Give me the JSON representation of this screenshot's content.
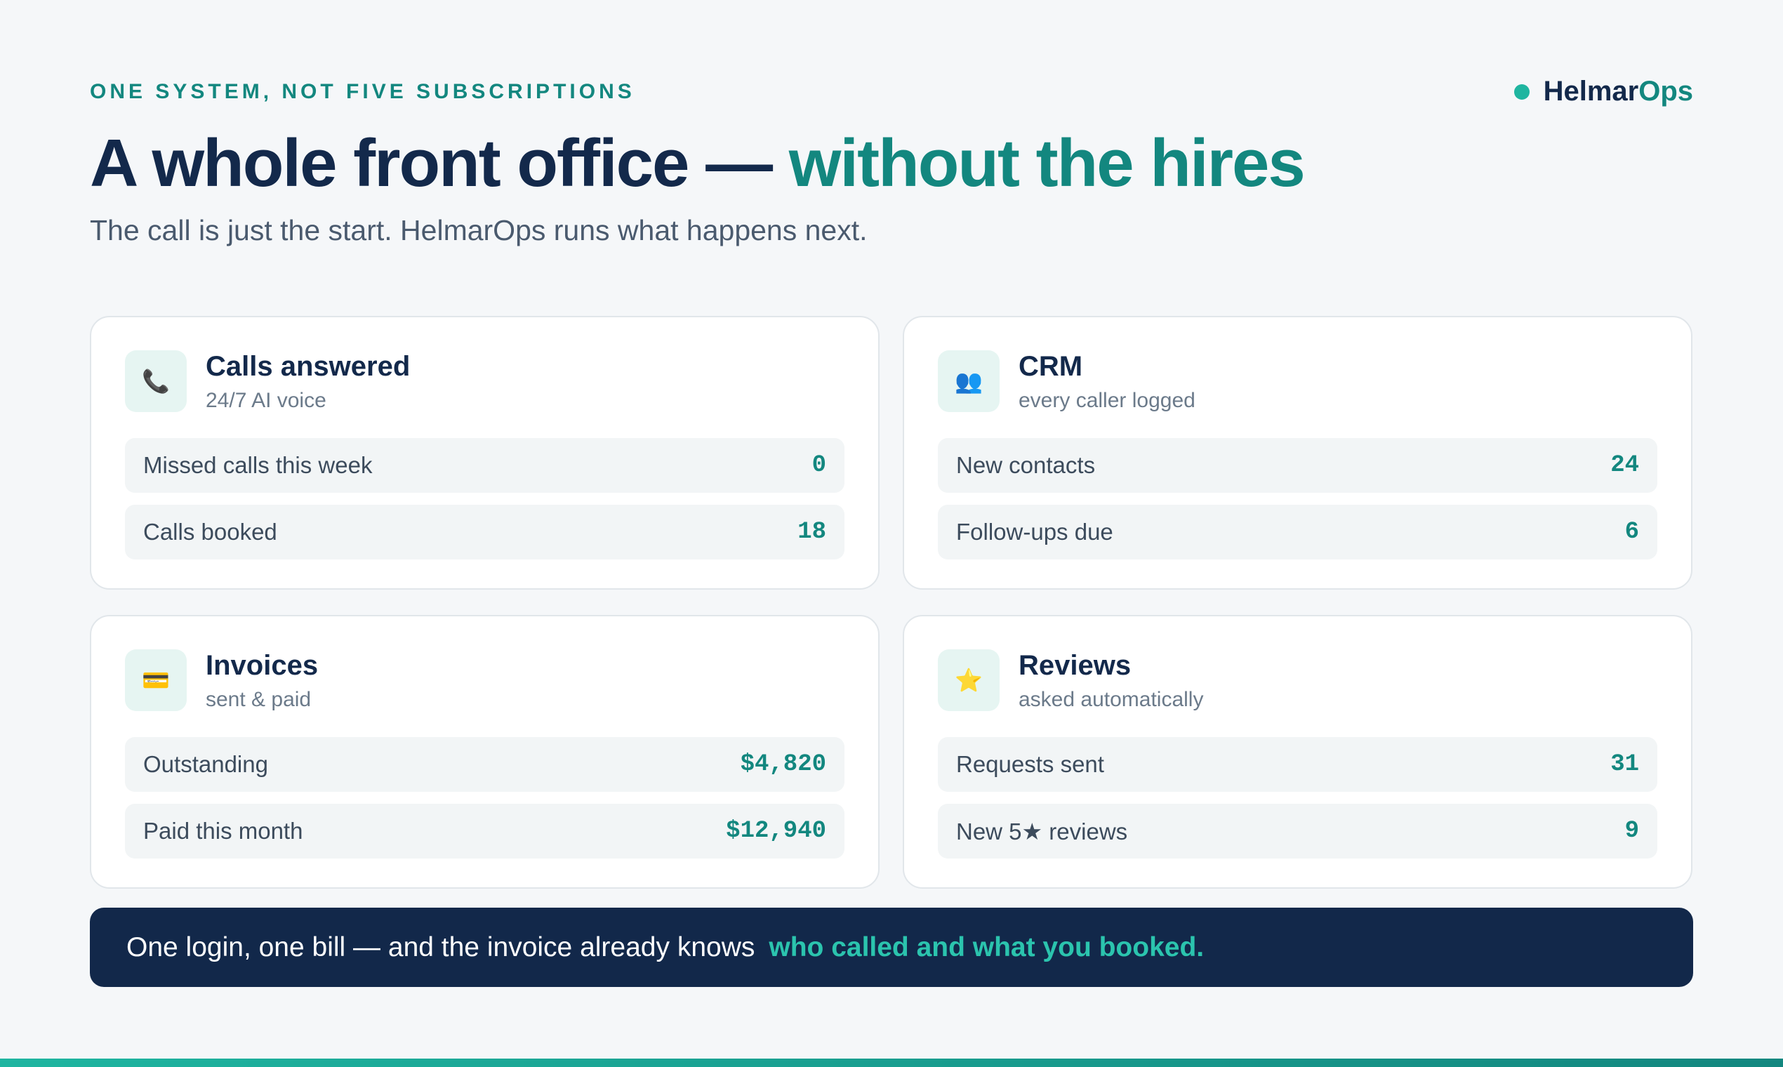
{
  "header": {
    "eyebrow": "ONE SYSTEM, NOT FIVE SUBSCRIPTIONS",
    "brand": {
      "name_a": "Helmar",
      "name_b": "Ops"
    },
    "title_a": "A whole front office —",
    "title_b": "without the hires",
    "subtitle": "The call is just the start. HelmarOps runs what happens next."
  },
  "cards": [
    {
      "icon": "📞",
      "title": "Calls answered",
      "subtitle": "24/7 AI voice",
      "rows": [
        {
          "label": "Missed calls this week",
          "value": "0"
        },
        {
          "label": "Calls booked",
          "value": "18"
        }
      ]
    },
    {
      "icon": "👥",
      "title": "CRM",
      "subtitle": "every caller logged",
      "rows": [
        {
          "label": "New contacts",
          "value": "24"
        },
        {
          "label": "Follow-ups due",
          "value": "6"
        }
      ]
    },
    {
      "icon": "💳",
      "title": "Invoices",
      "subtitle": "sent & paid",
      "rows": [
        {
          "label": "Outstanding",
          "value": "$4,820"
        },
        {
          "label": "Paid this month",
          "value": "$12,940"
        }
      ]
    },
    {
      "icon": "⭐",
      "title": "Reviews",
      "subtitle": "asked automatically",
      "rows": [
        {
          "label": "Requests sent",
          "value": "31"
        },
        {
          "label": "New 5★ reviews",
          "value": "9"
        }
      ]
    }
  ],
  "banner": {
    "text_a": "One login, one bill — and the invoice already knows",
    "text_b": "who called and what you booked."
  }
}
